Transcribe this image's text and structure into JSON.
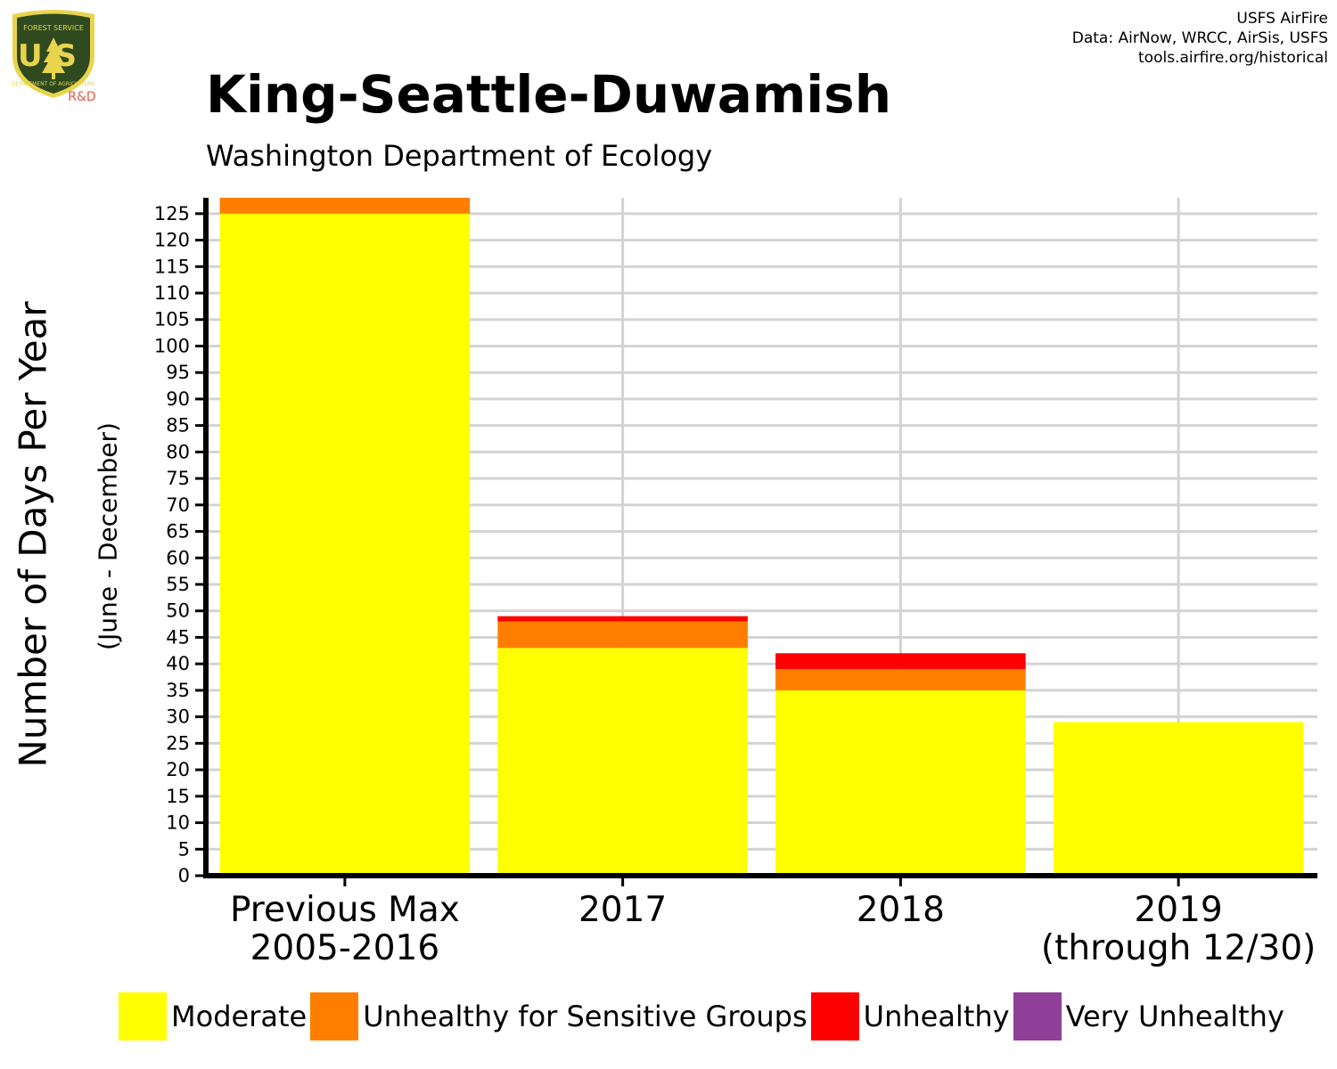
{
  "header": {
    "title": "King-Seattle-Duwamish",
    "subtitle": "Washington Department of Ecology",
    "credits": [
      "USFS AirFire",
      "Data: AirNow, WRCC, AirSis, USFS",
      "tools.airfire.org/historical"
    ]
  },
  "logo": {
    "top_text": "FOREST SERVICE",
    "letters": "US",
    "bottom_text": "DEPARTMENT OF AGRICULTURE",
    "badge": "R&D"
  },
  "colors": {
    "moderate": "#ffff00",
    "usg": "#ff7e00",
    "unhealthy": "#ff0000",
    "very_unhealthy": "#8f3f97",
    "grid": "#d3d3d3",
    "logo_green": "#2e4a1e",
    "logo_gold": "#e8d44d",
    "badge_red": "#e05c4a"
  },
  "chart_data": {
    "type": "bar",
    "stacked": true,
    "ylabel": "Number of Days Per Year",
    "ysublabel": "(June - December)",
    "ylim": [
      0,
      128
    ],
    "yticks": [
      0,
      5,
      10,
      15,
      20,
      25,
      30,
      35,
      40,
      45,
      50,
      55,
      60,
      65,
      70,
      75,
      80,
      85,
      90,
      95,
      100,
      105,
      110,
      115,
      120,
      125
    ],
    "grid": true,
    "legend_position": "bottom",
    "categories": [
      [
        "Previous Max",
        "2005-2016"
      ],
      [
        "2017"
      ],
      [
        "2018"
      ],
      [
        "2019",
        "(through 12/30)"
      ]
    ],
    "series": [
      {
        "name": "Moderate",
        "color": "#ffff00",
        "values": [
          125,
          43,
          35,
          29
        ]
      },
      {
        "name": "Unhealthy for Sensitive Groups",
        "color": "#ff7e00",
        "values": [
          3,
          5,
          4,
          0
        ]
      },
      {
        "name": "Unhealthy",
        "color": "#ff0000",
        "values": [
          0,
          1,
          3,
          0
        ]
      },
      {
        "name": "Very Unhealthy",
        "color": "#8f3f97",
        "values": [
          0,
          0,
          0,
          0
        ]
      }
    ]
  },
  "legend": {
    "items": [
      {
        "label": "Moderate",
        "color": "#ffff00"
      },
      {
        "label": "Unhealthy for Sensitive Groups",
        "color": "#ff7e00"
      },
      {
        "label": "Unhealthy",
        "color": "#ff0000"
      },
      {
        "label": "Very Unhealthy",
        "color": "#8f3f97"
      }
    ]
  }
}
